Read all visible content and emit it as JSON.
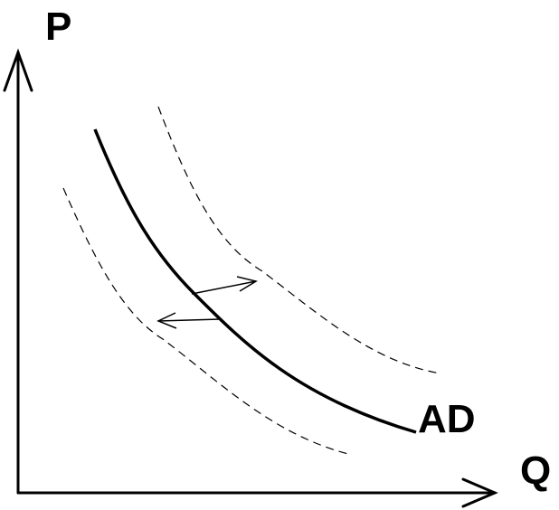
{
  "axes": {
    "y_label": "P",
    "x_label": "Q"
  },
  "curves": {
    "main_label": "AD"
  }
}
